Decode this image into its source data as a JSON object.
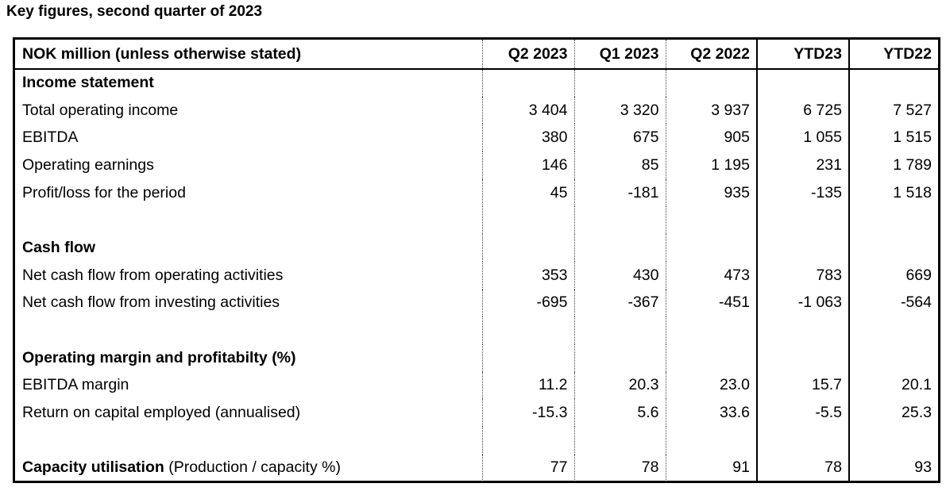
{
  "title": "Key figures, second quarter of 2023",
  "header": {
    "label": "NOK million (unless otherwise stated)",
    "cols": [
      "Q2 2023",
      "Q1 2023",
      "Q2 2022",
      "YTD23",
      "YTD22"
    ]
  },
  "sections": {
    "income": {
      "heading": "Income statement",
      "rows": [
        {
          "label": "Total operating income",
          "v": [
            "3 404",
            "3 320",
            "3 937",
            "6 725",
            "7 527"
          ]
        },
        {
          "label": "EBITDA",
          "v": [
            "380",
            "675",
            "905",
            "1 055",
            "1 515"
          ]
        },
        {
          "label": "Operating earnings",
          "v": [
            "146",
            "85",
            "1 195",
            "231",
            "1 789"
          ]
        },
        {
          "label": "Profit/loss for the period",
          "v": [
            "45",
            "-181",
            "935",
            "-135",
            "1 518"
          ]
        }
      ]
    },
    "cash": {
      "heading": "Cash flow",
      "rows": [
        {
          "label": "Net cash flow from operating activities",
          "v": [
            "353",
            "430",
            "473",
            "783",
            "669"
          ]
        },
        {
          "label": "Net cash flow from investing activities",
          "v": [
            "-695",
            "-367",
            "-451",
            "-1 063",
            "-564"
          ]
        }
      ]
    },
    "margin": {
      "heading": "Operating margin and profitabilty (%)",
      "rows": [
        {
          "label": "EBITDA margin",
          "v": [
            "11.2",
            "20.3",
            "23.0",
            "15.7",
            "20.1"
          ]
        },
        {
          "label": "Return on capital employed (annualised)",
          "v": [
            "-15.3",
            "5.6",
            "33.6",
            "-5.5",
            "25.3"
          ]
        }
      ]
    },
    "capacity": {
      "label_bold": "Capacity utilisation",
      "label_rest": " (Production / capacity %)",
      "v": [
        "77",
        "78",
        "91",
        "78",
        "93"
      ]
    }
  }
}
